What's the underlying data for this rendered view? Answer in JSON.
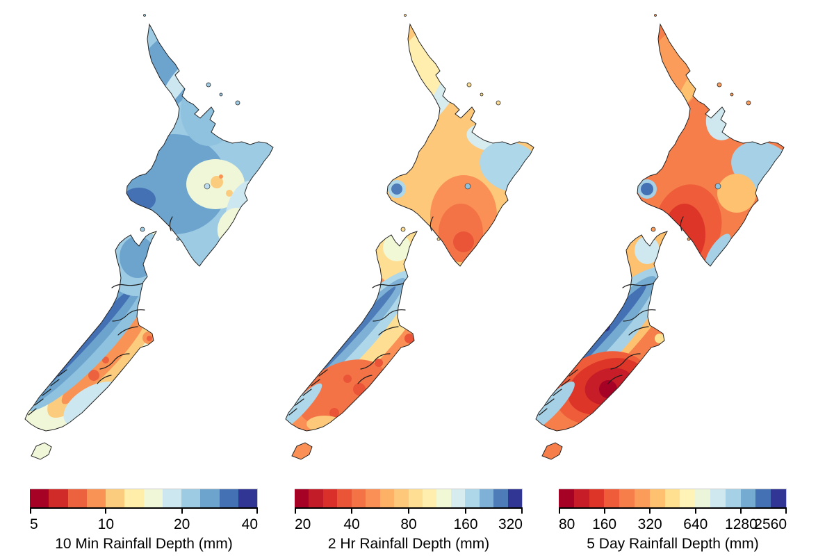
{
  "figure": {
    "type": "map-figure",
    "region": "New Zealand",
    "background": "#ffffff",
    "colormap_style": "discrete red-yellow-blue diverging classes on log2-spaced rainfall depth"
  },
  "panels": [
    {
      "id": "10min",
      "caption": "10 Min Rainfall Depth (mm)",
      "ticks": [
        "5",
        "10",
        "20",
        "40"
      ],
      "palette": [
        "#a50226",
        "#d02b28",
        "#ec613e",
        "#f99355",
        "#fbcb7e",
        "#ffedaa",
        "#eff7d8",
        "#cde7f0",
        "#9dcbe3",
        "#6ca4ce",
        "#4470b4",
        "#313695"
      ]
    },
    {
      "id": "2hr",
      "caption": "2 Hr Rainfall Depth (mm)",
      "ticks": [
        "20",
        "40",
        "80",
        "160",
        "320"
      ],
      "palette": [
        "#a50226",
        "#c21c28",
        "#d93129",
        "#ea5538",
        "#f37347",
        "#fa9055",
        "#fcb167",
        "#fdc87a",
        "#fede92",
        "#ffeeae",
        "#f1f8d6",
        "#d7ecef",
        "#aed7e9",
        "#7eb1d5",
        "#4e7cb9",
        "#313695"
      ]
    },
    {
      "id": "5day",
      "caption": "5 Day Rainfall Depth (mm)",
      "ticks": [
        "80",
        "160",
        "320",
        "640",
        "1280",
        "2560"
      ],
      "palette": [
        "#a50226",
        "#c61d28",
        "#de3529",
        "#ee5c3a",
        "#f67e4b",
        "#fb9c5b",
        "#fdc170",
        "#fee090",
        "#fff3b8",
        "#eaf5da",
        "#cfe8f0",
        "#a5d0e5",
        "#76abd1",
        "#4470b4",
        "#313695"
      ]
    }
  ]
}
